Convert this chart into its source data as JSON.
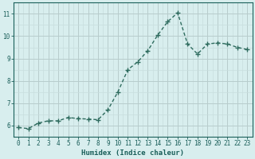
{
  "x": [
    0,
    1,
    2,
    3,
    4,
    5,
    6,
    7,
    8,
    9,
    10,
    11,
    12,
    13,
    14,
    15,
    16,
    17,
    18,
    19,
    20,
    21,
    22,
    23
  ],
  "y": [
    5.9,
    5.85,
    6.1,
    6.2,
    6.2,
    6.35,
    6.3,
    6.28,
    6.25,
    6.7,
    7.5,
    8.5,
    8.85,
    9.35,
    10.05,
    10.65,
    11.05,
    9.65,
    9.2,
    9.65,
    9.7,
    9.65,
    9.5,
    9.4
  ],
  "line_color": "#2e6b5e",
  "marker": "+",
  "marker_size": 4,
  "marker_lw": 1.0,
  "bg_color": "#d8eeee",
  "grid_color_major": "#b8cccc",
  "grid_color_minor": "#c8dede",
  "xlabel": "Humidex (Indice chaleur)",
  "ylim": [
    5.5,
    11.5
  ],
  "xlim": [
    -0.5,
    23.5
  ],
  "yticks": [
    6,
    7,
    8,
    9,
    10,
    11
  ],
  "xticks": [
    0,
    1,
    2,
    3,
    4,
    5,
    6,
    7,
    8,
    9,
    10,
    11,
    12,
    13,
    14,
    15,
    16,
    17,
    18,
    19,
    20,
    21,
    22,
    23
  ],
  "tick_color": "#1a5f5a",
  "label_fontsize": 5.5,
  "axis_fontsize": 6.5,
  "line_width": 1.0
}
